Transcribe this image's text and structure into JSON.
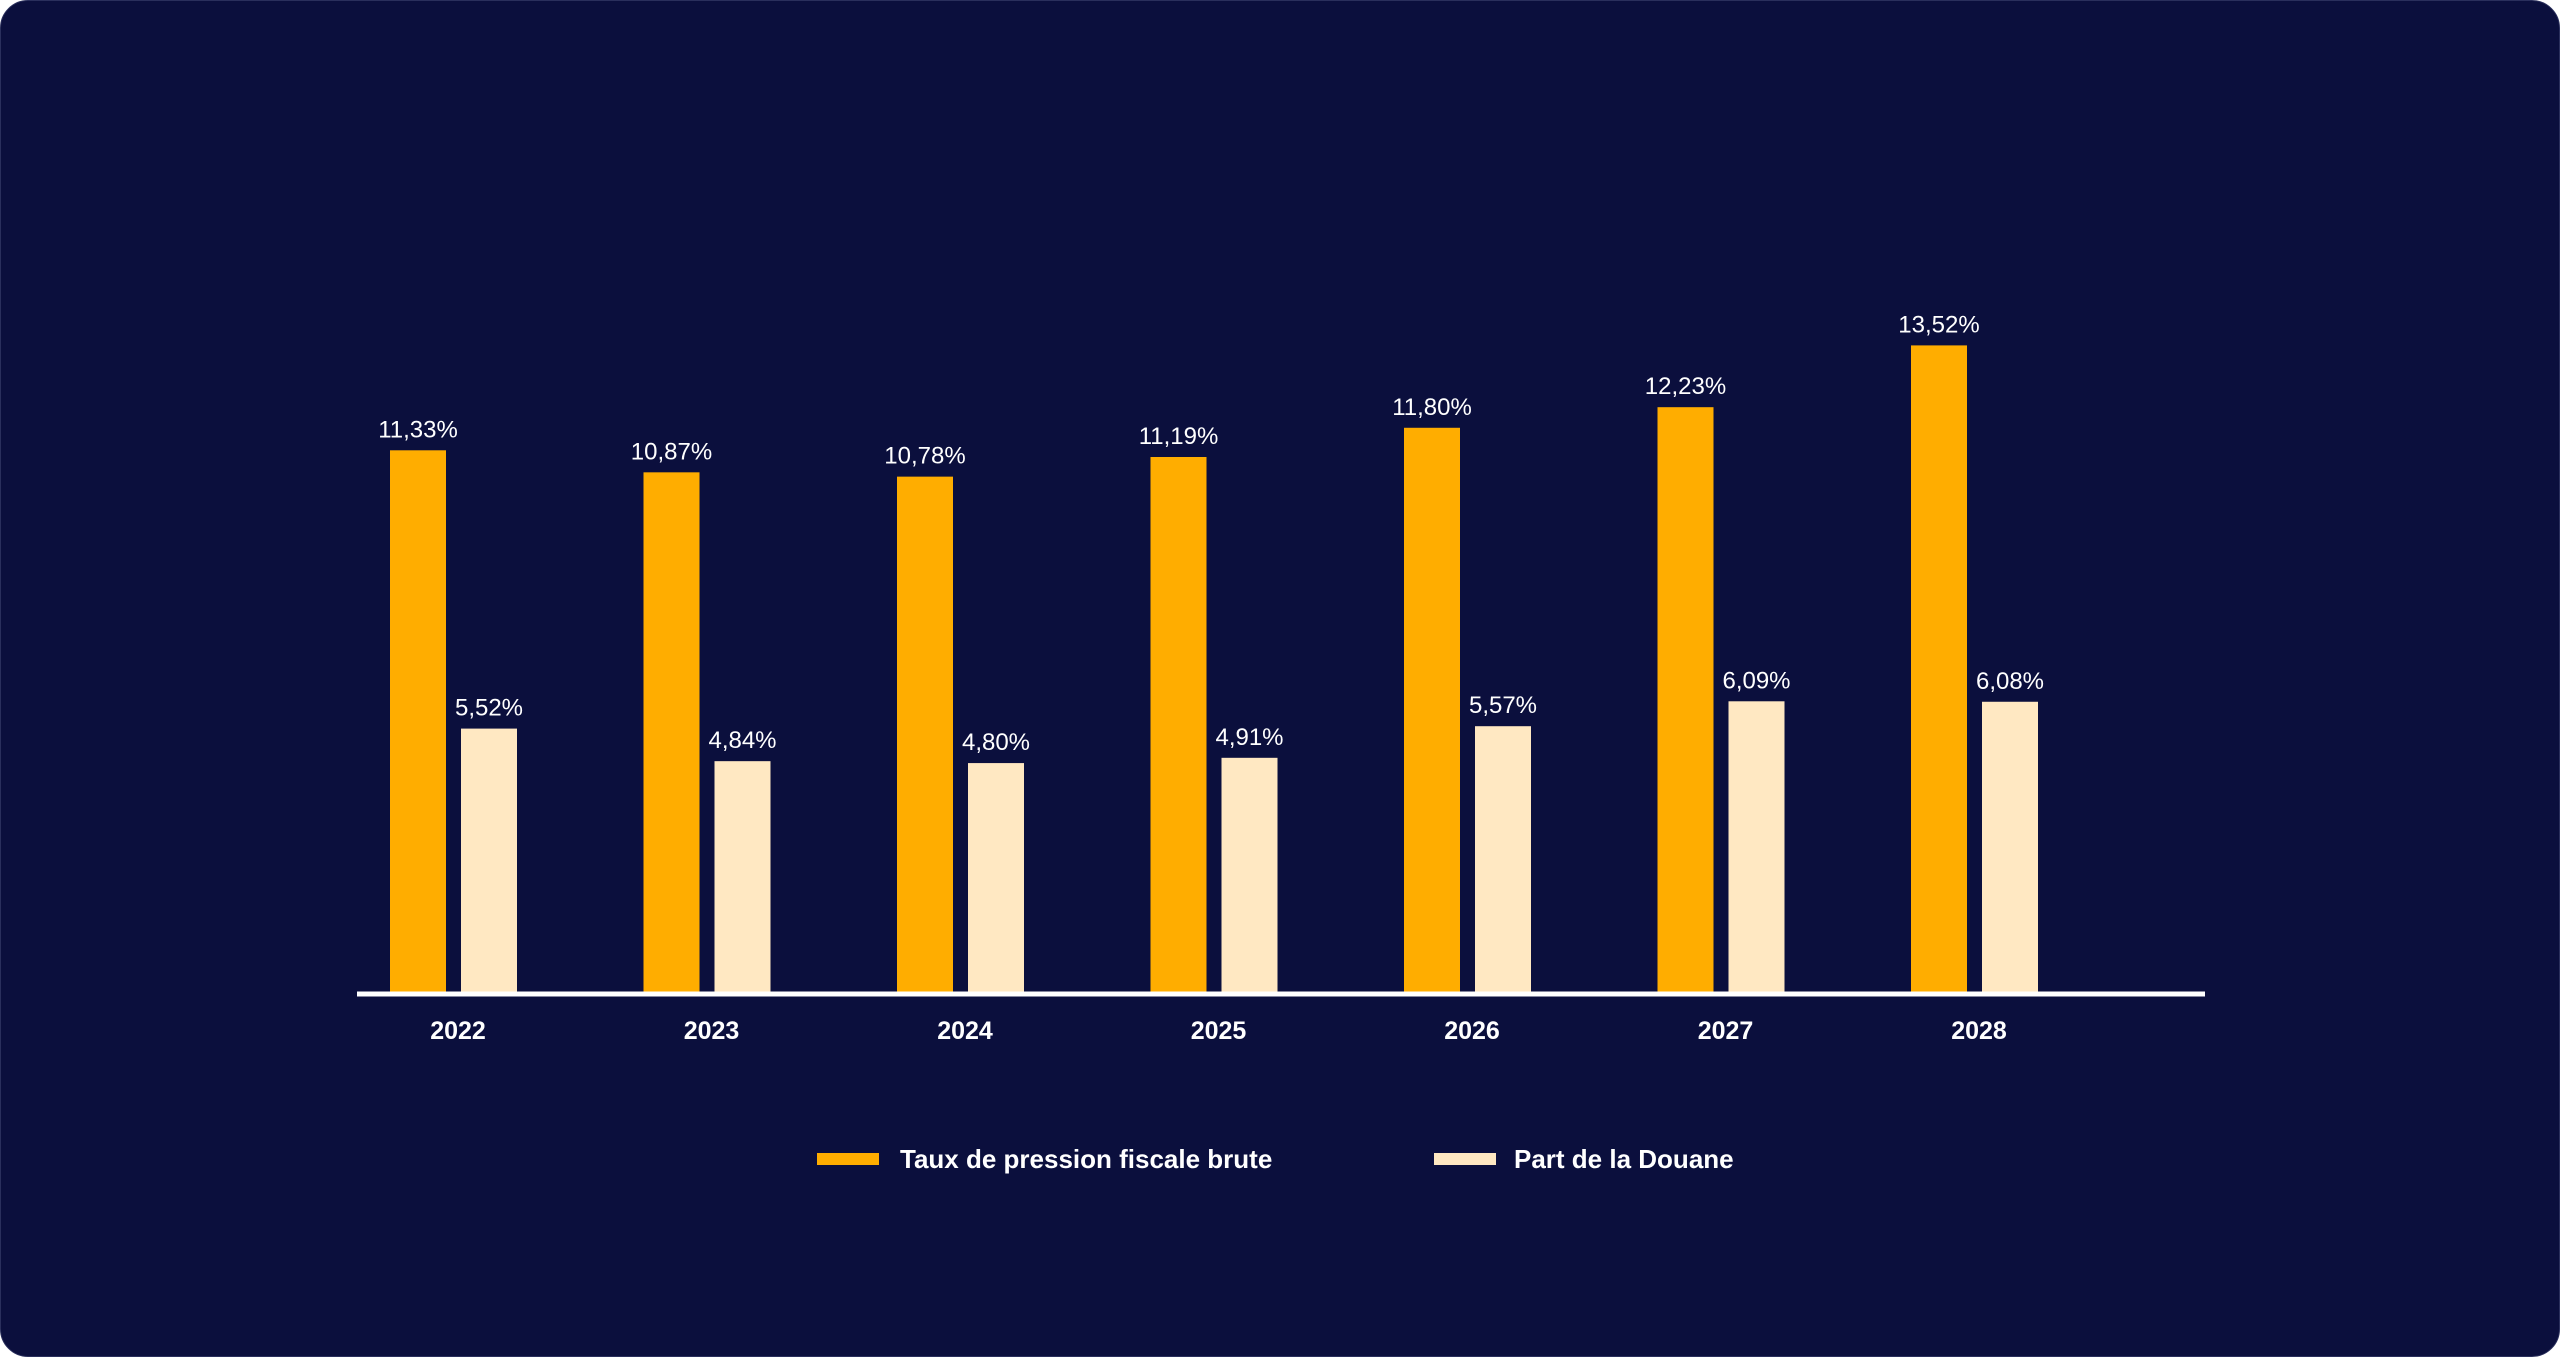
{
  "chart_data": {
    "type": "bar",
    "categories": [
      "2022",
      "2023",
      "2024",
      "2025",
      "2026",
      "2027",
      "2028"
    ],
    "series": [
      {
        "name": "Taux de pression fiscale brute",
        "color": "#ffad00",
        "values": [
          11.33,
          10.87,
          10.78,
          11.19,
          11.8,
          12.23,
          13.52
        ],
        "labels": [
          "11,33%",
          "10,87%",
          "10,78%",
          "11,19%",
          "11,80%",
          "12,23%",
          "13,52%"
        ]
      },
      {
        "name": "Part de la Douane",
        "color": "#ffe8c2",
        "values": [
          5.52,
          4.84,
          4.8,
          4.91,
          5.57,
          6.09,
          6.08
        ],
        "labels": [
          "5,52%",
          "4,84%",
          "4,80%",
          "4,91%",
          "5,57%",
          "6,09%",
          "6,08%"
        ]
      }
    ],
    "ylim": [
      0,
      14
    ],
    "grid": false,
    "legend_position": "bottom"
  },
  "colors": {
    "background": "#0b0f3d",
    "axis": "#ffffff",
    "text": "#ffffff"
  }
}
